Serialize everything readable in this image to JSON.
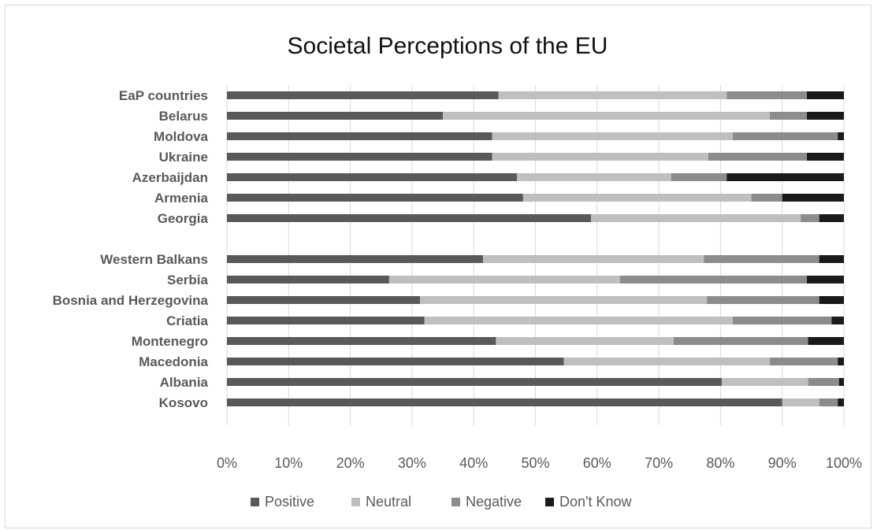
{
  "chart_data": {
    "type": "bar",
    "orientation": "horizontal",
    "stacked": "percent",
    "title": "Societal Perceptions of the EU",
    "categories": [
      "EaP countries",
      "Belarus",
      "Moldova",
      "Ukraine",
      "Azerbaijdan",
      "Armenia",
      "Georgia",
      "",
      "Western Balkans",
      "Serbia",
      "Bosnia and Herzegovina",
      "Criatia",
      "Montenegro",
      "Macedonia",
      "Albania",
      "Kosovo"
    ],
    "series": [
      {
        "name": "Positive",
        "color": "#595959",
        "values": [
          44,
          35,
          43,
          43,
          47,
          48,
          59,
          null,
          41.5,
          26.3,
          31.3,
          32,
          43.6,
          54.6,
          80.2,
          90
        ]
      },
      {
        "name": "Neutral",
        "color": "#bfbfbf",
        "values": [
          37,
          53,
          39,
          35,
          25,
          37,
          34,
          null,
          35.8,
          37.4,
          46.5,
          50,
          28.8,
          33.4,
          14,
          6
        ]
      },
      {
        "name": "Negative",
        "color": "#8c8c8c",
        "values": [
          13,
          6,
          17,
          16,
          9,
          5,
          3,
          null,
          18.7,
          30.3,
          18.2,
          16,
          21.8,
          11,
          5,
          3
        ]
      },
      {
        "name": "Don't Know",
        "color": "#1a1a1a",
        "values": [
          6,
          6,
          1,
          6,
          19,
          10,
          4,
          null,
          4,
          6,
          4,
          2,
          5.8,
          1,
          0.8,
          1
        ]
      }
    ],
    "xlim": [
      0,
      100
    ],
    "xticks": [
      "0%",
      "10%",
      "20%",
      "30%",
      "40%",
      "50%",
      "60%",
      "70%",
      "80%",
      "90%",
      "100%"
    ],
    "grid": true,
    "legend": "bottom"
  }
}
